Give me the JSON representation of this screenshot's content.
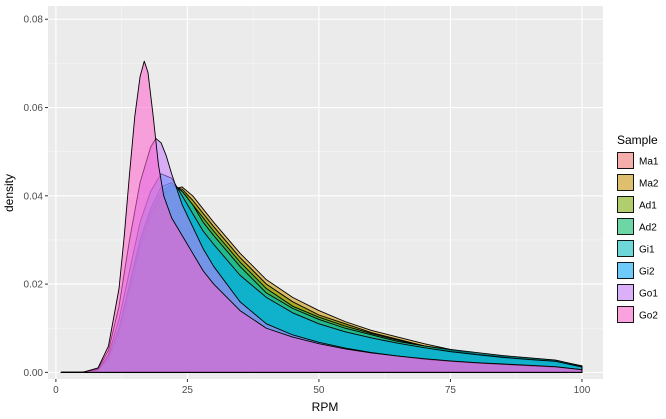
{
  "chart_data": {
    "type": "area",
    "xlabel": "RPM",
    "ylabel": "density",
    "xlim": [
      -1.5,
      104
    ],
    "ylim": [
      -0.0015,
      0.083
    ],
    "x_ticks": [
      0,
      25,
      50,
      75,
      100
    ],
    "x_tick_labels": [
      "0",
      "25",
      "50",
      "75",
      "100"
    ],
    "y_ticks": [
      0.0,
      0.02,
      0.04,
      0.06,
      0.08
    ],
    "y_tick_labels": [
      "0.00",
      "0.02",
      "0.04",
      "0.06",
      "0.08"
    ],
    "grid": true,
    "legend": {
      "title": "Sample",
      "position": "right"
    },
    "fill_opacity": 0.55,
    "series": [
      {
        "name": "Ma1",
        "color": "#F8766D",
        "x": [
          1,
          5,
          8,
          10,
          12,
          14,
          16,
          18,
          20,
          22,
          24,
          26,
          28,
          30,
          35,
          40,
          45,
          50,
          55,
          60,
          65,
          70,
          75,
          80,
          85,
          90,
          95,
          100
        ],
        "y": [
          0,
          0,
          0.0005,
          0.003,
          0.009,
          0.019,
          0.029,
          0.036,
          0.04,
          0.0415,
          0.041,
          0.039,
          0.036,
          0.033,
          0.026,
          0.02,
          0.016,
          0.013,
          0.011,
          0.009,
          0.0075,
          0.006,
          0.0048,
          0.0038,
          0.0032,
          0.0027,
          0.0022,
          0.0012
        ]
      },
      {
        "name": "Ma2",
        "color": "#CD9600",
        "x": [
          1,
          5,
          8,
          10,
          12,
          14,
          16,
          18,
          20,
          22,
          24,
          26,
          28,
          30,
          35,
          40,
          45,
          50,
          55,
          60,
          65,
          70,
          75,
          80,
          85,
          90,
          95,
          100
        ],
        "y": [
          0,
          0,
          0.0005,
          0.0025,
          0.008,
          0.017,
          0.027,
          0.034,
          0.039,
          0.0415,
          0.042,
          0.04,
          0.037,
          0.034,
          0.027,
          0.021,
          0.017,
          0.014,
          0.0115,
          0.0095,
          0.008,
          0.0065,
          0.0052,
          0.0042,
          0.0035,
          0.003,
          0.0024,
          0.0012
        ]
      },
      {
        "name": "Ad1",
        "color": "#7CAE00",
        "x": [
          1,
          5,
          8,
          10,
          12,
          14,
          16,
          18,
          20,
          22,
          24,
          26,
          28,
          30,
          35,
          40,
          45,
          50,
          55,
          60,
          65,
          70,
          75,
          80,
          85,
          90,
          95,
          100
        ],
        "y": [
          0,
          0,
          0.0005,
          0.003,
          0.009,
          0.018,
          0.028,
          0.035,
          0.04,
          0.042,
          0.0415,
          0.039,
          0.036,
          0.033,
          0.026,
          0.02,
          0.016,
          0.013,
          0.011,
          0.009,
          0.0075,
          0.006,
          0.005,
          0.004,
          0.0034,
          0.003,
          0.0025,
          0.0012
        ]
      },
      {
        "name": "Ad2",
        "color": "#00BE67",
        "x": [
          1,
          5,
          8,
          10,
          12,
          14,
          16,
          18,
          20,
          22,
          24,
          26,
          28,
          30,
          35,
          40,
          45,
          50,
          55,
          60,
          65,
          70,
          75,
          80,
          85,
          90,
          95,
          100
        ],
        "y": [
          0,
          0,
          0.0005,
          0.003,
          0.0095,
          0.019,
          0.029,
          0.036,
          0.041,
          0.0425,
          0.041,
          0.038,
          0.035,
          0.032,
          0.025,
          0.019,
          0.015,
          0.0125,
          0.0105,
          0.0088,
          0.0073,
          0.006,
          0.005,
          0.0042,
          0.0036,
          0.0031,
          0.0027,
          0.0015
        ]
      },
      {
        "name": "Gi1",
        "color": "#00BFC4",
        "x": [
          1,
          5,
          8,
          10,
          12,
          14,
          16,
          18,
          20,
          22,
          24,
          26,
          28,
          30,
          35,
          40,
          45,
          50,
          55,
          60,
          65,
          70,
          75,
          80,
          85,
          90,
          95,
          100
        ],
        "y": [
          0,
          0,
          0.0005,
          0.0035,
          0.01,
          0.02,
          0.03,
          0.037,
          0.042,
          0.043,
          0.041,
          0.038,
          0.034,
          0.031,
          0.024,
          0.018,
          0.0145,
          0.012,
          0.01,
          0.0085,
          0.007,
          0.006,
          0.0052,
          0.0045,
          0.0038,
          0.0033,
          0.0028,
          0.0014
        ]
      },
      {
        "name": "Gi2",
        "color": "#00A9FF",
        "x": [
          1,
          5,
          8,
          10,
          12,
          14,
          16,
          18,
          20,
          22,
          24,
          26,
          28,
          30,
          35,
          40,
          45,
          50,
          55,
          60,
          65,
          70,
          75,
          80,
          85,
          90,
          95,
          100
        ],
        "y": [
          0,
          0,
          0.0006,
          0.004,
          0.012,
          0.023,
          0.034,
          0.041,
          0.045,
          0.044,
          0.04,
          0.036,
          0.032,
          0.029,
          0.022,
          0.017,
          0.0135,
          0.011,
          0.0092,
          0.0078,
          0.0066,
          0.0056,
          0.0047,
          0.004,
          0.0034,
          0.0029,
          0.0025,
          0.0012
        ]
      },
      {
        "name": "Go1",
        "color": "#C77CFF",
        "x": [
          1,
          5,
          8,
          10,
          12,
          14,
          16,
          18,
          19,
          20,
          21,
          22,
          24,
          26,
          28,
          30,
          35,
          40,
          45,
          50,
          55,
          60,
          65,
          70,
          75,
          80,
          85,
          90,
          95,
          100
        ],
        "y": [
          0,
          0,
          0.0008,
          0.005,
          0.015,
          0.03,
          0.043,
          0.051,
          0.053,
          0.052,
          0.049,
          0.045,
          0.038,
          0.033,
          0.028,
          0.024,
          0.016,
          0.011,
          0.0085,
          0.0068,
          0.0055,
          0.0045,
          0.0037,
          0.003,
          0.0025,
          0.0021,
          0.0018,
          0.0015,
          0.0012,
          0.0006
        ]
      },
      {
        "name": "Go2",
        "color": "#FF61CC",
        "x": [
          1,
          5,
          8,
          10,
          12,
          13,
          14,
          15,
          16,
          16.8,
          17.5,
          18.5,
          19.5,
          20.5,
          22,
          24,
          26,
          28,
          30,
          35,
          40,
          45,
          50,
          55,
          60,
          65,
          70,
          75,
          80,
          85,
          90,
          95,
          100
        ],
        "y": [
          0,
          0,
          0.001,
          0.006,
          0.019,
          0.031,
          0.045,
          0.058,
          0.067,
          0.0705,
          0.068,
          0.058,
          0.047,
          0.04,
          0.035,
          0.031,
          0.027,
          0.023,
          0.02,
          0.014,
          0.01,
          0.008,
          0.0065,
          0.0053,
          0.0044,
          0.0037,
          0.0031,
          0.0026,
          0.0022,
          0.0019,
          0.0016,
          0.0013,
          0.0006
        ]
      }
    ]
  }
}
